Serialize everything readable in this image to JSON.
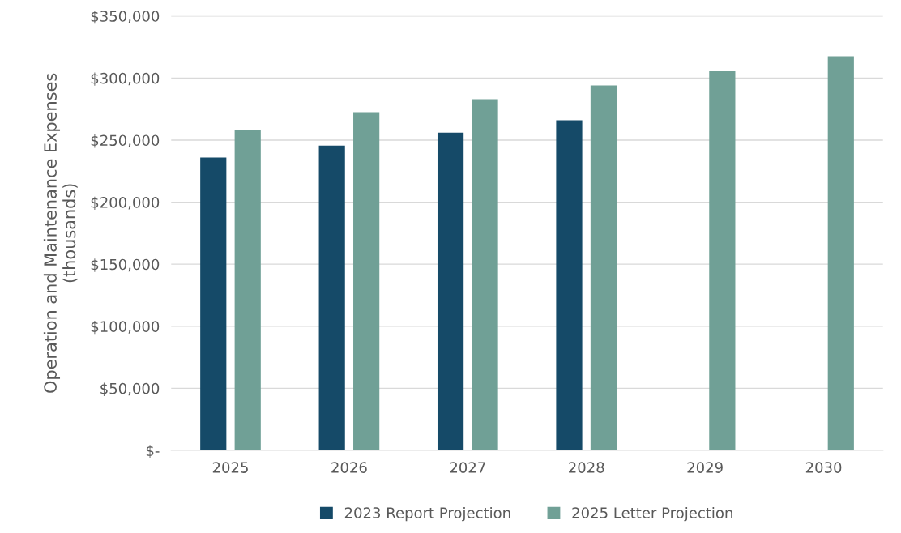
{
  "chart_data": {
    "type": "bar",
    "ylabel": "Operation and Maintenance Expenses\n(thousands)",
    "categories": [
      "2025",
      "2026",
      "2027",
      "2028",
      "2029",
      "2030"
    ],
    "series": [
      {
        "name": "2023 Report Projection",
        "color": "#154a68",
        "values": [
          236000,
          245500,
          256000,
          266000,
          null,
          null
        ]
      },
      {
        "name": "2025 Letter Projection",
        "color": "#70a096",
        "values": [
          258500,
          272500,
          283000,
          294000,
          305500,
          317500
        ]
      }
    ],
    "ylim": [
      0,
      350000
    ],
    "yticks": [
      {
        "value": 0,
        "label": "$-"
      },
      {
        "value": 50000,
        "label": "$50,000"
      },
      {
        "value": 100000,
        "label": "$100,000"
      },
      {
        "value": 150000,
        "label": "$150,000"
      },
      {
        "value": 200000,
        "label": "$200,000"
      },
      {
        "value": 250000,
        "label": "$250,000"
      },
      {
        "value": 300000,
        "label": "$300,000"
      },
      {
        "value": 350000,
        "label": "$350,000"
      }
    ],
    "grid": "y",
    "legend": "bottom"
  }
}
